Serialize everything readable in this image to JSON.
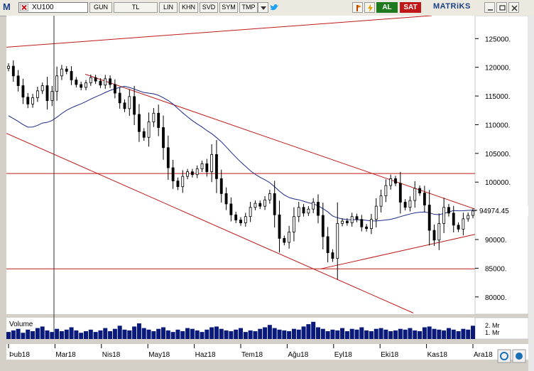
{
  "toolbar": {
    "app_logo": "M",
    "symbol": "XU100",
    "period_buttons": [
      "GUN",
      "TL",
      "LIN",
      "KHN",
      "SVD",
      "SYM",
      "TMP"
    ],
    "buy_label": "AL",
    "sell_label": "SAT",
    "brand": "MATRiKS",
    "icons": [
      "close-icon",
      "dropdown-icon",
      "twitter-icon",
      "flag-icon",
      "lightning-icon",
      "refresh-icon",
      "buy-sell-icon",
      "minimize-icon",
      "restore-icon",
      "window-close-icon"
    ]
  },
  "chart_data": {
    "type": "candlestick",
    "x_tick_labels": [
      "Þub18",
      "Mar18",
      "Nis18",
      "May18",
      "Haz18",
      "Tem18",
      "Ağu18",
      "Eyl18",
      "Eki18",
      "Kas18",
      "Ara18"
    ],
    "y_tick_labels": [
      "125000.",
      "120000.",
      "115000.",
      "110000.",
      "105000.",
      "100000.",
      "95000.",
      "90000.",
      "85000.",
      "80000."
    ],
    "ylim": [
      77000,
      129000
    ],
    "last_price_label": "94974.45",
    "last_price": 94974.45,
    "volume_label": "Volume",
    "volume_tick_labels": [
      "2. Mr",
      "1. Mr"
    ],
    "moving_average_color": "#1c2a8a",
    "trendline_color": "#c01818",
    "horizontal_levels": [
      101500,
      84900
    ],
    "series_close": [
      120200,
      118500,
      116800,
      114800,
      113600,
      114700,
      115900,
      116800,
      114200,
      115800,
      118500,
      119700,
      119300,
      117800,
      117000,
      116500,
      117300,
      118200,
      117600,
      116900,
      118000,
      117000,
      115500,
      113800,
      112800,
      114900,
      111800,
      108800,
      107800,
      110500,
      112000,
      109500,
      106000,
      102500,
      100200,
      99200,
      101000,
      101800,
      101300,
      102300,
      103200,
      101800,
      104800,
      100600,
      98000,
      96200,
      94300,
      93400,
      92900,
      94000,
      95600,
      96300,
      95800,
      96900,
      98000,
      94300,
      90200,
      89500,
      91300,
      94000,
      95600,
      94600,
      95300,
      96500,
      94200,
      90500,
      87700,
      86700,
      92800,
      93200,
      92900,
      94000,
      93500,
      92200,
      91900,
      93500,
      95800,
      97600,
      99400,
      100600,
      99800,
      96500,
      95600,
      96800,
      98900,
      98100,
      96000,
      91600,
      89900,
      92800,
      95600,
      94600,
      92500,
      91800,
      93600,
      94200,
      94974.45
    ],
    "series_volume": [
      0.9,
      1.1,
      1.3,
      0.8,
      1.2,
      1.0,
      1.4,
      1.6,
      1.1,
      0.9,
      1.3,
      1.0,
      1.2,
      1.5,
      1.1,
      0.8,
      1.0,
      1.2,
      0.9,
      1.1,
      1.4,
      1.0,
      1.3,
      1.7,
      1.2,
      1.1,
      1.6,
      2.0,
      1.4,
      1.2,
      1.0,
      1.3,
      1.5,
      1.1,
      0.9,
      1.2,
      1.0,
      1.4,
      1.3,
      1.1,
      0.9,
      1.2,
      1.5,
      1.6,
      1.3,
      1.1,
      1.0,
      1.2,
      1.4,
      0.9,
      1.1,
      1.0,
      1.3,
      1.5,
      1.8,
      1.4,
      1.2,
      1.1,
      1.0,
      1.3,
      1.2,
      1.6,
      1.9,
      2.2,
      1.5,
      1.3,
      1.0,
      1.2,
      1.1,
      1.4,
      1.0,
      1.3,
      1.2,
      1.5,
      1.1,
      1.0,
      1.3,
      1.4,
      1.2,
      1.0,
      1.1,
      1.3,
      1.2,
      1.4,
      1.1,
      1.0,
      1.5,
      1.6,
      1.3,
      1.2,
      1.1,
      1.4,
      1.2,
      1.0,
      1.3,
      1.2,
      1.7
    ]
  }
}
